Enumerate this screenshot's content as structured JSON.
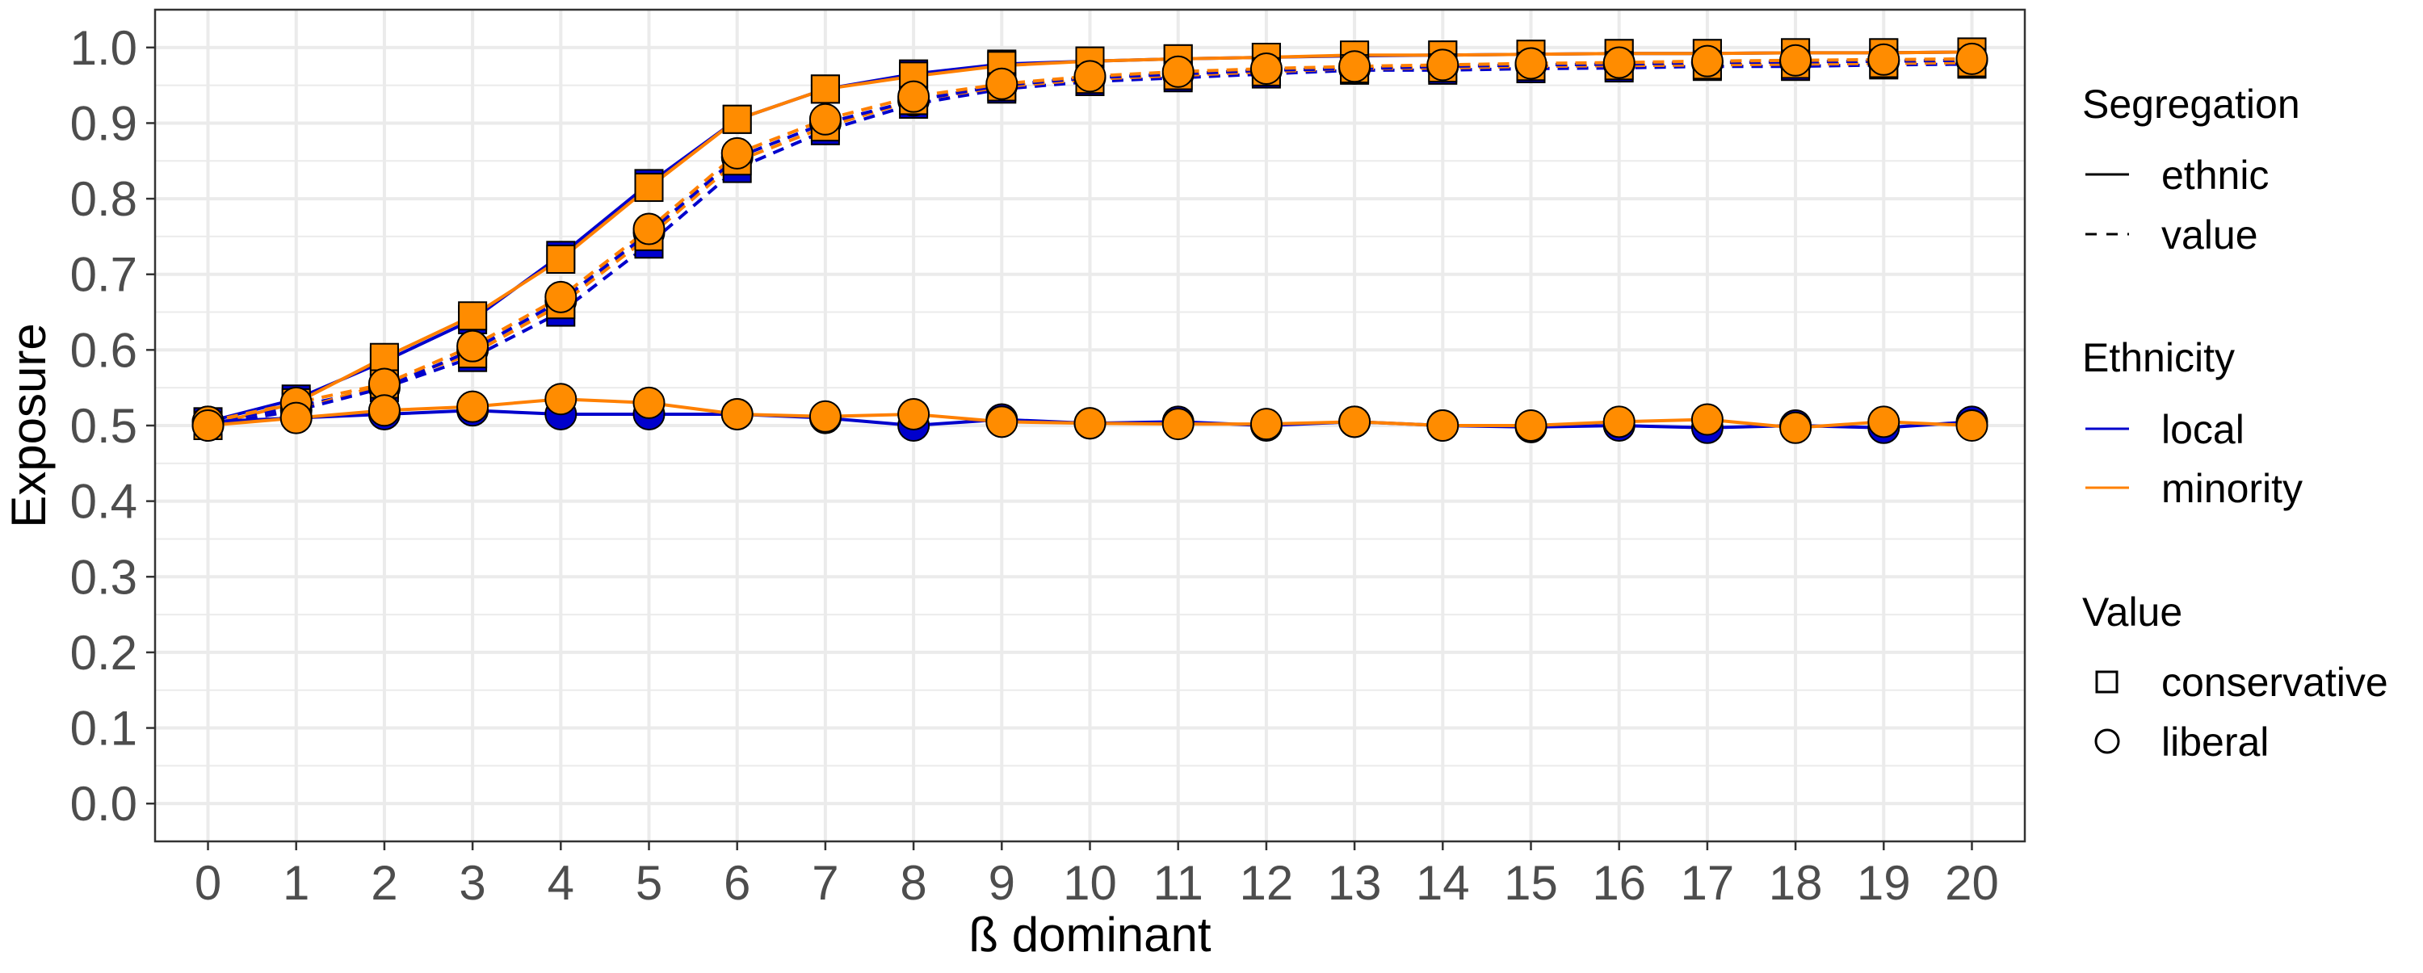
{
  "chart_data": {
    "type": "line",
    "xlabel": "ß dominant",
    "ylabel": "Exposure",
    "xlim": [
      -0.6,
      20.6
    ],
    "ylim": [
      -0.05,
      1.05
    ],
    "x_ticks": [
      "0",
      "1",
      "2",
      "3",
      "4",
      "5",
      "6",
      "7",
      "8",
      "9",
      "10",
      "11",
      "12",
      "13",
      "14",
      "15",
      "16",
      "17",
      "18",
      "19",
      "20"
    ],
    "y_ticks": [
      "0.0",
      "0.1",
      "0.2",
      "0.3",
      "0.4",
      "0.5",
      "0.6",
      "0.7",
      "0.8",
      "0.9",
      "1.0"
    ],
    "grid": true,
    "legend_position": "right",
    "colors": {
      "local": "#0000cc",
      "minority": "#ff8000",
      "marker_fill_local": "#0000cc",
      "marker_fill_minority": "#ff8c00",
      "marker_stroke": "#000000",
      "grid": "#ebebeb",
      "panel_border": "#333333"
    },
    "x": [
      0,
      1,
      2,
      3,
      4,
      5,
      6,
      7,
      8,
      9,
      10,
      11,
      12,
      13,
      14,
      15,
      16,
      17,
      18,
      19,
      20
    ],
    "series": [
      {
        "segregation": "ethnic",
        "ethnicity": "local",
        "value": "conservative",
        "values": [
          0.505,
          0.535,
          0.585,
          0.64,
          0.725,
          0.82,
          0.905,
          0.945,
          0.965,
          0.978,
          0.982,
          0.985,
          0.987,
          0.989,
          0.99,
          0.991,
          0.992,
          0.992,
          0.993,
          0.993,
          0.994
        ]
      },
      {
        "segregation": "ethnic",
        "ethnicity": "minority",
        "value": "conservative",
        "values": [
          0.5,
          0.53,
          0.59,
          0.645,
          0.72,
          0.815,
          0.905,
          0.945,
          0.962,
          0.976,
          0.982,
          0.985,
          0.987,
          0.99,
          0.99,
          0.991,
          0.992,
          0.992,
          0.993,
          0.993,
          0.994
        ]
      },
      {
        "segregation": "value",
        "ethnicity": "local",
        "value": "conservative",
        "values": [
          0.5,
          0.525,
          0.55,
          0.59,
          0.65,
          0.74,
          0.84,
          0.89,
          0.925,
          0.945,
          0.955,
          0.96,
          0.965,
          0.97,
          0.97,
          0.972,
          0.973,
          0.975,
          0.975,
          0.977,
          0.978
        ]
      },
      {
        "segregation": "value",
        "ethnicity": "minority",
        "value": "conservative",
        "values": [
          0.5,
          0.52,
          0.555,
          0.595,
          0.66,
          0.75,
          0.85,
          0.895,
          0.93,
          0.948,
          0.958,
          0.963,
          0.968,
          0.972,
          0.973,
          0.975,
          0.976,
          0.977,
          0.978,
          0.979,
          0.98
        ]
      },
      {
        "segregation": "value",
        "ethnicity": "local",
        "value": "liberal",
        "values": [
          0.5,
          0.52,
          0.55,
          0.6,
          0.665,
          0.755,
          0.855,
          0.9,
          0.93,
          0.95,
          0.96,
          0.965,
          0.97,
          0.972,
          0.975,
          0.977,
          0.978,
          0.98,
          0.981,
          0.982,
          0.983
        ]
      },
      {
        "segregation": "value",
        "ethnicity": "minority",
        "value": "liberal",
        "values": [
          0.505,
          0.53,
          0.555,
          0.605,
          0.67,
          0.76,
          0.86,
          0.905,
          0.935,
          0.952,
          0.962,
          0.968,
          0.972,
          0.975,
          0.977,
          0.979,
          0.98,
          0.982,
          0.983,
          0.984,
          0.985
        ]
      },
      {
        "segregation": "ethnic",
        "ethnicity": "local",
        "value": "liberal",
        "values": [
          0.505,
          0.51,
          0.515,
          0.52,
          0.515,
          0.515,
          0.515,
          0.51,
          0.5,
          0.508,
          0.503,
          0.505,
          0.5,
          0.505,
          0.5,
          0.498,
          0.5,
          0.497,
          0.5,
          0.497,
          0.505
        ]
      },
      {
        "segregation": "ethnic",
        "ethnicity": "minority",
        "value": "liberal",
        "values": [
          0.5,
          0.51,
          0.52,
          0.525,
          0.535,
          0.53,
          0.515,
          0.512,
          0.515,
          0.505,
          0.503,
          0.502,
          0.502,
          0.505,
          0.5,
          0.5,
          0.505,
          0.508,
          0.497,
          0.505,
          0.5
        ]
      }
    ],
    "legend": {
      "segregation": {
        "title": "Segregation",
        "items": [
          {
            "label": "ethnic",
            "linetype": "solid"
          },
          {
            "label": "value",
            "linetype": "dashed"
          }
        ]
      },
      "ethnicity": {
        "title": "Ethnicity",
        "items": [
          {
            "label": "local",
            "color": "#0000cc"
          },
          {
            "label": "minority",
            "color": "#ff8000"
          }
        ]
      },
      "value": {
        "title": "Value",
        "items": [
          {
            "label": "conservative",
            "shape": "square"
          },
          {
            "label": "liberal",
            "shape": "circle"
          }
        ]
      }
    }
  }
}
